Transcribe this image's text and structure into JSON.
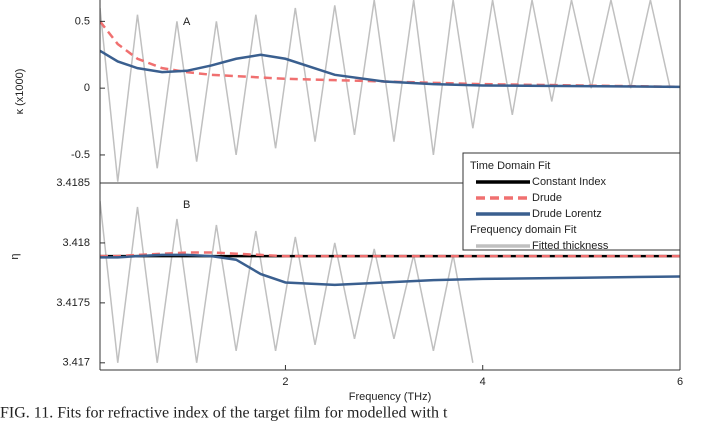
{
  "chart_data": [
    {
      "type": "line",
      "panel_label": "A",
      "ylabel": "κ (x1000)",
      "xlim": [
        0.12,
        6
      ],
      "ylim": [
        -0.71,
        0.66
      ],
      "yticks": [
        -0.5,
        0,
        0.5
      ],
      "series": [
        {
          "name": "Fitted thickness",
          "color": "#c0c0c0",
          "x": [
            0.12,
            0.3,
            0.5,
            0.7,
            0.9,
            1.1,
            1.3,
            1.5,
            1.7,
            1.9,
            2.1,
            2.3,
            2.5,
            2.7,
            2.9,
            3.1,
            3.3,
            3.5,
            3.7,
            3.9,
            4.1,
            4.3,
            4.5,
            4.7,
            4.9,
            5.1,
            5.3,
            5.5,
            5.7,
            5.9
          ],
          "values": [
            0.6,
            -0.7,
            0.55,
            -0.6,
            0.5,
            -0.55,
            0.5,
            -0.5,
            0.55,
            -0.45,
            0.6,
            -0.4,
            0.62,
            -0.35,
            0.66,
            -0.4,
            0.66,
            -0.5,
            0.66,
            -0.3,
            0.66,
            -0.2,
            0.66,
            -0.1,
            0.66,
            0,
            0.66,
            0,
            0.66,
            0
          ]
        },
        {
          "name": "Drude",
          "color": "#f07070",
          "dash": true,
          "x": [
            0.12,
            0.3,
            0.5,
            0.75,
            1,
            1.25,
            1.5,
            1.75,
            2,
            2.5,
            3,
            3.5,
            4,
            5,
            6
          ],
          "values": [
            0.5,
            0.33,
            0.22,
            0.15,
            0.12,
            0.1,
            0.09,
            0.08,
            0.07,
            0.06,
            0.05,
            0.04,
            0.03,
            0.02,
            0.01
          ]
        },
        {
          "name": "Drude Lorentz",
          "color": "#3a5f8f",
          "x": [
            0.12,
            0.3,
            0.5,
            0.75,
            1,
            1.25,
            1.5,
            1.75,
            2,
            2.5,
            3,
            3.5,
            4,
            5,
            6
          ],
          "values": [
            0.28,
            0.2,
            0.15,
            0.12,
            0.13,
            0.17,
            0.22,
            0.25,
            0.22,
            0.1,
            0.05,
            0.03,
            0.02,
            0.015,
            0.01
          ]
        }
      ]
    },
    {
      "type": "line",
      "panel_label": "B",
      "ylabel": "η",
      "xlabel": "Frequency (THz)",
      "xlim": [
        0.12,
        6
      ],
      "ylim": [
        3.41694,
        3.4185
      ],
      "xticks": [
        2,
        4,
        6
      ],
      "yticks": [
        3.417,
        3.4175,
        3.418,
        3.4185
      ],
      "series": [
        {
          "name": "Fitted thickness",
          "color": "#c0c0c0",
          "x": [
            0.12,
            0.3,
            0.5,
            0.7,
            0.9,
            1.1,
            1.3,
            1.5,
            1.7,
            1.9,
            2.1,
            2.3,
            2.5,
            2.7,
            2.9,
            3.1,
            3.3,
            3.5,
            3.7,
            3.9
          ],
          "values": [
            3.41835,
            3.417,
            3.4183,
            3.417,
            3.4182,
            3.417,
            3.41815,
            3.4171,
            3.4181,
            3.4171,
            3.41805,
            3.41715,
            3.418,
            3.4172,
            3.41795,
            3.4172,
            3.4179,
            3.4171,
            3.4179,
            3.417
          ]
        },
        {
          "name": "Constant Index",
          "color": "#000000",
          "x": [
            0.12,
            6
          ],
          "values": [
            3.41789,
            3.41789
          ]
        },
        {
          "name": "Drude",
          "color": "#f07070",
          "dash": true,
          "x": [
            0.12,
            0.3,
            0.5,
            0.75,
            1,
            1.25,
            1.5,
            1.75,
            2,
            2.5,
            3,
            3.5,
            4,
            5,
            6
          ],
          "values": [
            3.41789,
            3.41789,
            3.4179,
            3.41791,
            3.41792,
            3.41792,
            3.41791,
            3.4179,
            3.41789,
            3.41789,
            3.41789,
            3.41789,
            3.41789,
            3.41789,
            3.41789
          ]
        },
        {
          "name": "Drude Lorentz",
          "color": "#3a5f8f",
          "x": [
            0.12,
            0.3,
            0.5,
            0.75,
            1,
            1.25,
            1.5,
            1.75,
            2,
            2.5,
            3,
            3.5,
            4,
            5,
            6
          ],
          "values": [
            3.41788,
            3.41788,
            3.41789,
            3.4179,
            3.4179,
            3.41789,
            3.41786,
            3.41774,
            3.41767,
            3.41765,
            3.41767,
            3.41769,
            3.4177,
            3.41771,
            3.41772
          ]
        }
      ]
    }
  ],
  "legend_headers": [
    "Time Domain Fit",
    "Frequency domain Fit"
  ],
  "caption": "FIG. 11. Fits for refractive index of the target film for modelled with t"
}
